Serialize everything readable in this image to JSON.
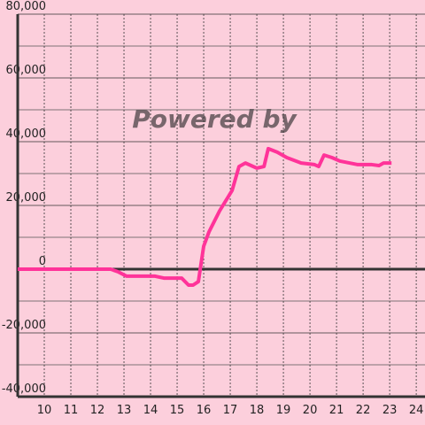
{
  "chart_data": {
    "type": "line",
    "watermark": "Powered by",
    "x": [
      9.0,
      12.5,
      12.77,
      13.1,
      14.17,
      14.5,
      15.17,
      15.43,
      15.6,
      15.8,
      16.0,
      16.2,
      16.6,
      17.07,
      17.33,
      17.57,
      18.0,
      18.27,
      18.43,
      18.77,
      19.13,
      19.67,
      20.17,
      20.33,
      20.53,
      20.83,
      21.13,
      21.8,
      22.33,
      22.6,
      22.77,
      23.07
    ],
    "series": [
      {
        "color": "#ff3399",
        "values": [
          0,
          0,
          -800,
          -2200,
          -2200,
          -2800,
          -2800,
          -5000,
          -5000,
          -3900,
          7200,
          11700,
          18300,
          24700,
          32200,
          33300,
          31700,
          32200,
          37800,
          36700,
          35000,
          33300,
          32800,
          32200,
          35800,
          35000,
          33900,
          32800,
          32800,
          32500,
          33300,
          33300
        ]
      }
    ],
    "xlim": [
      9,
      24.33
    ],
    "xticks": [
      10,
      11,
      12,
      13,
      14,
      15,
      16,
      17,
      18,
      19,
      20,
      21,
      22,
      23,
      24
    ],
    "ylim": [
      -40000,
      80000
    ],
    "yticks": [
      {
        "value": -40000,
        "label": "-40,000"
      },
      {
        "value": -20000,
        "label": "-20,000"
      },
      0,
      {
        "value": 20000,
        "label": "20,000"
      },
      {
        "value": 40000,
        "label": "40,000"
      },
      {
        "value": 60000,
        "label": "60,000"
      },
      {
        "value": 80000,
        "label": "80,000"
      }
    ],
    "yticks_minor": [
      -30000,
      -10000,
      10000,
      30000,
      50000,
      70000
    ],
    "grid": true
  }
}
